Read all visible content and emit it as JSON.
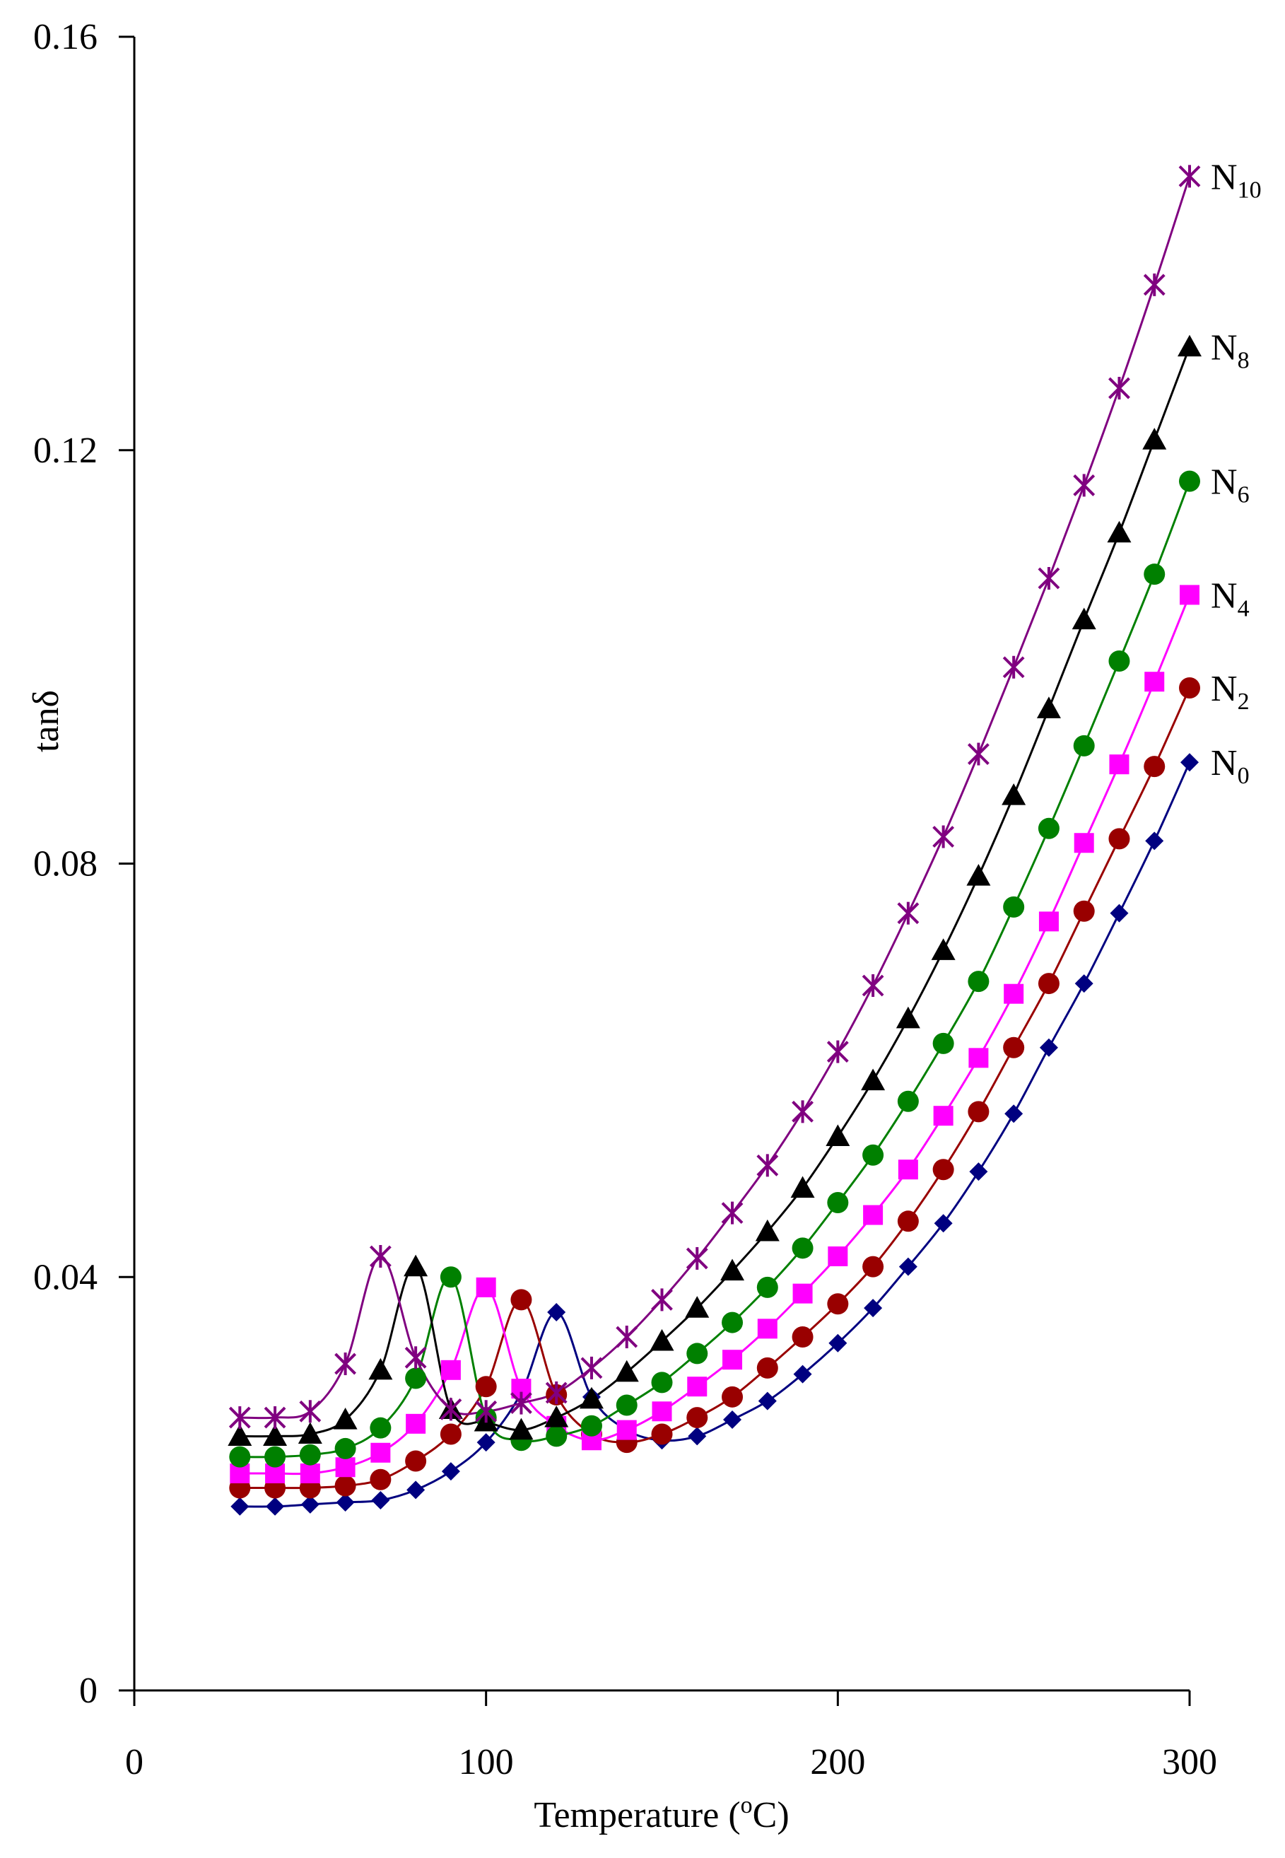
{
  "chart_data": {
    "type": "line",
    "xlabel": "Temperature (°C)",
    "ylabel": "tanδ",
    "xlim": [
      0,
      300
    ],
    "ylim": [
      0,
      0.16
    ],
    "xticks": [
      "0",
      "100",
      "200",
      "300"
    ],
    "yticks": [
      "0",
      "0.04",
      "0.08",
      "0.12",
      "0.16"
    ],
    "grid": false,
    "legend": "inline labels at right end of curves",
    "x": [
      30,
      40,
      50,
      60,
      70,
      80,
      90,
      100,
      110,
      120,
      130,
      140,
      150,
      160,
      170,
      180,
      190,
      200,
      210,
      220,
      230,
      240,
      250,
      260,
      270,
      280,
      290,
      300
    ],
    "series": [
      {
        "name": "N0",
        "label_main": "N",
        "label_sub": "0",
        "color": "#000080",
        "marker": "diamond",
        "values": [
          0.0178,
          0.0178,
          0.018,
          0.0182,
          0.0184,
          0.0194,
          0.0212,
          0.024,
          0.0288,
          0.0366,
          0.0284,
          0.0252,
          0.0242,
          0.0246,
          0.0262,
          0.028,
          0.0306,
          0.0336,
          0.037,
          0.041,
          0.0452,
          0.0502,
          0.0558,
          0.0622,
          0.0684,
          0.0752,
          0.0822,
          0.0898
        ]
      },
      {
        "name": "N2",
        "label_main": "N",
        "label_sub": "2",
        "color": "#990000",
        "marker": "circle",
        "values": [
          0.0196,
          0.0196,
          0.0196,
          0.0198,
          0.0204,
          0.0222,
          0.0248,
          0.0294,
          0.0378,
          0.0286,
          0.0248,
          0.024,
          0.0248,
          0.0264,
          0.0284,
          0.0312,
          0.0342,
          0.0374,
          0.041,
          0.0454,
          0.0504,
          0.056,
          0.0622,
          0.0684,
          0.0754,
          0.0824,
          0.0894,
          0.097
        ]
      },
      {
        "name": "N4",
        "label_main": "N",
        "label_sub": "4",
        "color": "#FF00FF",
        "marker": "square",
        "values": [
          0.021,
          0.021,
          0.021,
          0.0216,
          0.023,
          0.0258,
          0.031,
          0.039,
          0.0292,
          0.0256,
          0.0242,
          0.0252,
          0.027,
          0.0294,
          0.032,
          0.035,
          0.0384,
          0.042,
          0.046,
          0.0504,
          0.0556,
          0.0612,
          0.0674,
          0.0744,
          0.082,
          0.0896,
          0.0976,
          0.106
        ]
      },
      {
        "name": "N6",
        "label_main": "N",
        "label_sub": "6",
        "color": "#008000",
        "marker": "circle",
        "values": [
          0.0226,
          0.0226,
          0.0228,
          0.0234,
          0.0254,
          0.0302,
          0.04,
          0.0264,
          0.0242,
          0.0246,
          0.0256,
          0.0276,
          0.0298,
          0.0326,
          0.0356,
          0.039,
          0.0428,
          0.0472,
          0.0518,
          0.057,
          0.0626,
          0.0686,
          0.0758,
          0.0834,
          0.0914,
          0.0996,
          0.108,
          0.117
        ]
      },
      {
        "name": "N8",
        "label_main": "N",
        "label_sub": "8",
        "color": "#000000",
        "marker": "triangle",
        "values": [
          0.0246,
          0.0246,
          0.0248,
          0.0262,
          0.031,
          0.041,
          0.0272,
          0.026,
          0.0252,
          0.0264,
          0.0282,
          0.0308,
          0.0338,
          0.037,
          0.0406,
          0.0444,
          0.0486,
          0.0536,
          0.059,
          0.065,
          0.0716,
          0.0788,
          0.0866,
          0.095,
          0.1036,
          0.112,
          0.121,
          0.13
        ]
      },
      {
        "name": "N10",
        "label_main": "N",
        "label_sub": "10",
        "color": "#800080",
        "marker": "star",
        "values": [
          0.0264,
          0.0264,
          0.027,
          0.0316,
          0.042,
          0.0322,
          0.0272,
          0.027,
          0.0278,
          0.0288,
          0.0312,
          0.0342,
          0.0378,
          0.0418,
          0.0462,
          0.0508,
          0.056,
          0.0618,
          0.0682,
          0.0752,
          0.0826,
          0.0906,
          0.099,
          0.1076,
          0.1166,
          0.126,
          0.136,
          0.1465
        ]
      }
    ]
  }
}
